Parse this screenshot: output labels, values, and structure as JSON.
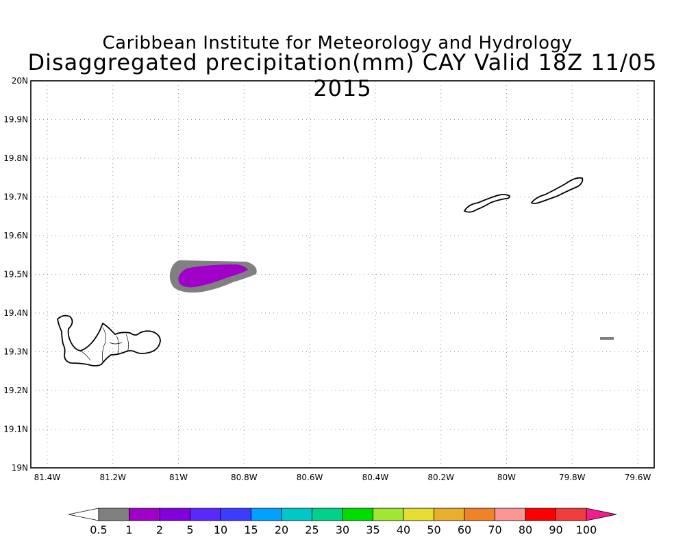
{
  "title": {
    "line1": "Caribbean Institute for Meteorology and Hydrology",
    "line2": "Disaggregated precipitation(mm) CAY Valid 18Z 11/05 2015"
  },
  "map": {
    "lon_range": [
      -81.45,
      -79.55
    ],
    "lat_range": [
      19.0,
      20.0
    ],
    "grid": true,
    "lat_ticks": [
      {
        "value": 19.0,
        "label": "19N"
      },
      {
        "value": 19.1,
        "label": "19.1N"
      },
      {
        "value": 19.2,
        "label": "19.2N"
      },
      {
        "value": 19.3,
        "label": "19.3N"
      },
      {
        "value": 19.4,
        "label": "19.4N"
      },
      {
        "value": 19.5,
        "label": "19.5N"
      },
      {
        "value": 19.6,
        "label": "19.6N"
      },
      {
        "value": 19.7,
        "label": "19.7N"
      },
      {
        "value": 19.8,
        "label": "19.8N"
      },
      {
        "value": 19.9,
        "label": "19.9N"
      },
      {
        "value": 20.0,
        "label": "20N"
      }
    ],
    "lon_ticks": [
      {
        "value": -81.4,
        "label": "81.4W"
      },
      {
        "value": -81.2,
        "label": "81.2W"
      },
      {
        "value": -81.0,
        "label": "81W"
      },
      {
        "value": -80.8,
        "label": "80.8W"
      },
      {
        "value": -80.6,
        "label": "80.6W"
      },
      {
        "value": -80.4,
        "label": "80.4W"
      },
      {
        "value": -80.2,
        "label": "80.2W"
      },
      {
        "value": -80.0,
        "label": "80W"
      },
      {
        "value": -79.8,
        "label": "79.8W"
      },
      {
        "value": -79.6,
        "label": "79.6W"
      }
    ]
  },
  "colorbar": {
    "labels": [
      "0.5",
      "1",
      "2",
      "5",
      "10",
      "15",
      "20",
      "25",
      "30",
      "35",
      "40",
      "50",
      "60",
      "70",
      "80",
      "90",
      "100"
    ],
    "colors": [
      "#808080",
      "#a000c8",
      "#8200dc",
      "#5a28fa",
      "#3c3cff",
      "#00a0ff",
      "#00c8c8",
      "#00d28c",
      "#00dc00",
      "#a0e632",
      "#e6dc32",
      "#e6af2d",
      "#f08228",
      "#fa9696",
      "#fa0000",
      "#f03c3c"
    ],
    "under_color": "#ffffff",
    "over_color": "#f01e8c"
  }
}
